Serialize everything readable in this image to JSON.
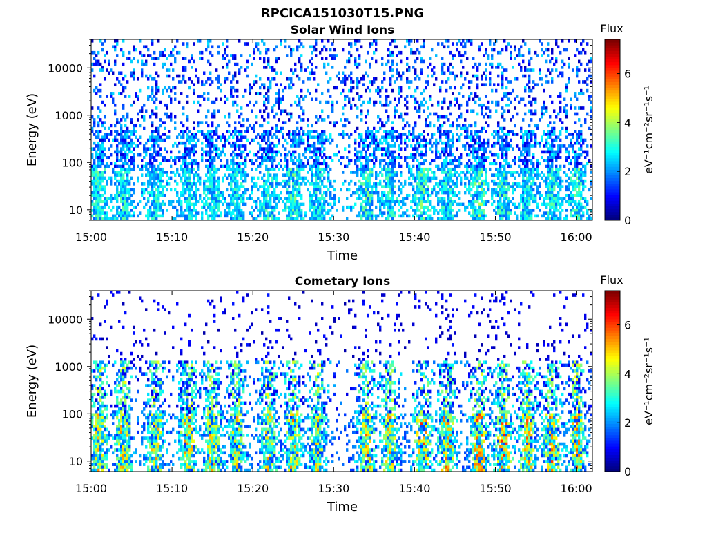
{
  "page_title": "RPCICA151030T15.PNG",
  "chart_data": [
    {
      "type": "heatmap",
      "title": "Solar Wind Ions",
      "xlabel": "Time",
      "ylabel": "Energy (eV)",
      "y_scale": "log",
      "ylim": [
        6,
        40000
      ],
      "y_ticks": [
        10,
        100,
        1000,
        10000
      ],
      "y_tick_labels": [
        "10",
        "100",
        "1000",
        "10000"
      ],
      "xlim": [
        "15:00",
        "16:02"
      ],
      "x_ticks": [
        "15:00",
        "15:10",
        "15:20",
        "15:30",
        "15:40",
        "15:50",
        "16:00"
      ],
      "colorbar": {
        "title": "Flux",
        "label": "eV⁻¹cm⁻²sr⁻¹s⁻¹",
        "range": [
          0,
          7.4
        ],
        "ticks": [
          0,
          2,
          4,
          6
        ],
        "colormap": "jet"
      },
      "grid": false,
      "bursts": [
        {
          "t": "15:01",
          "peak": 3.8
        },
        {
          "t": "15:04",
          "peak": 3.6
        },
        {
          "t": "15:08",
          "peak": 3.5
        },
        {
          "t": "15:12",
          "peak": 3.4
        },
        {
          "t": "15:15",
          "peak": 3.5
        },
        {
          "t": "15:18",
          "peak": 3.5
        },
        {
          "t": "15:22",
          "peak": 3.6
        },
        {
          "t": "15:25",
          "peak": 3.8
        },
        {
          "t": "15:28",
          "peak": 3.5
        },
        {
          "t": "15:34",
          "peak": 3.9
        },
        {
          "t": "15:37",
          "peak": 3.6
        },
        {
          "t": "15:41",
          "peak": 4.0
        },
        {
          "t": "15:44",
          "peak": 3.5
        },
        {
          "t": "15:48",
          "peak": 4.2
        },
        {
          "t": "15:51",
          "peak": 3.8
        },
        {
          "t": "15:54",
          "peak": 3.5
        },
        {
          "t": "15:57",
          "peak": 3.6
        },
        {
          "t": "16:00",
          "peak": 3.8
        }
      ]
    },
    {
      "type": "heatmap",
      "title": "Cometary Ions",
      "xlabel": "Time",
      "ylabel": "Energy (eV)",
      "y_scale": "log",
      "ylim": [
        6,
        40000
      ],
      "y_ticks": [
        10,
        100,
        1000,
        10000
      ],
      "y_tick_labels": [
        "10",
        "100",
        "1000",
        "10000"
      ],
      "xlim": [
        "15:00",
        "16:02"
      ],
      "x_ticks": [
        "15:00",
        "15:10",
        "15:20",
        "15:30",
        "15:40",
        "15:50",
        "16:00"
      ],
      "colorbar": {
        "title": "Flux",
        "label": "eV⁻¹cm⁻²sr⁻¹s⁻¹",
        "range": [
          0,
          7.4
        ],
        "ticks": [
          0,
          2,
          4,
          6
        ],
        "colormap": "jet"
      },
      "grid": false,
      "bursts": [
        {
          "t": "15:01",
          "peak": 5.6
        },
        {
          "t": "15:04",
          "peak": 5.8
        },
        {
          "t": "15:08",
          "peak": 5.7
        },
        {
          "t": "15:12",
          "peak": 5.9
        },
        {
          "t": "15:15",
          "peak": 5.6
        },
        {
          "t": "15:18",
          "peak": 5.4
        },
        {
          "t": "15:22",
          "peak": 5.6
        },
        {
          "t": "15:25",
          "peak": 5.9
        },
        {
          "t": "15:28",
          "peak": 5.3
        },
        {
          "t": "15:34",
          "peak": 6.0
        },
        {
          "t": "15:37",
          "peak": 5.7
        },
        {
          "t": "15:41",
          "peak": 6.4
        },
        {
          "t": "15:44",
          "peak": 6.0
        },
        {
          "t": "15:48",
          "peak": 6.3
        },
        {
          "t": "15:51",
          "peak": 6.6
        },
        {
          "t": "15:54",
          "peak": 5.9
        },
        {
          "t": "15:57",
          "peak": 6.2
        },
        {
          "t": "16:00",
          "peak": 6.0
        }
      ]
    }
  ]
}
